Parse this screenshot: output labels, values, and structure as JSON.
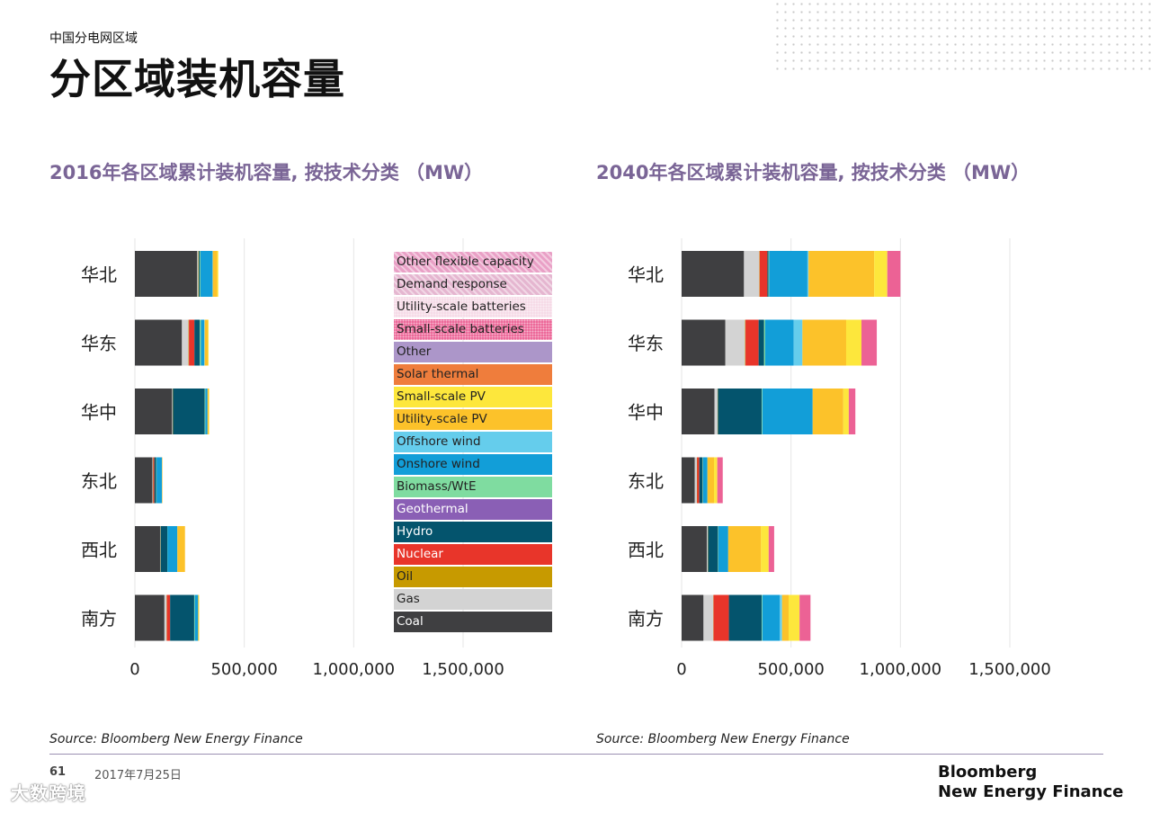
{
  "header": {
    "kicker": "中国分电网区域",
    "title": "分区域装机容量"
  },
  "colors": {
    "Coal": "#3f3f41",
    "Gas": "#d3d3d3",
    "Oil": "#c79a00",
    "Nuclear": "#e8352a",
    "Hydro": "#04546d",
    "Geothermal": "#8a5fb5",
    "Biomass/WtE": "#7fdca0",
    "Onshore wind": "#129ed8",
    "Offshore wind": "#65cdec",
    "Utility-scale PV": "#fcc22a",
    "Small-scale PV": "#fde73c",
    "Solar thermal": "#ef7d3c",
    "Other": "#ac96c9",
    "Small-scale batteries": "#ec6295",
    "Utility-scale batteries": "#f6d9e6",
    "Demand response": "#e5b6d0",
    "Other flexible capacity": "#e9a0c6"
  },
  "legend": {
    "items": [
      "Other flexible capacity",
      "Demand response",
      "Utility-scale batteries",
      "Small-scale batteries",
      "Other",
      "Solar thermal",
      "Small-scale PV",
      "Utility-scale PV",
      "Offshore wind",
      "Onshore wind",
      "Biomass/WtE",
      "Geothermal",
      "Hydro",
      "Nuclear",
      "Oil",
      "Gas",
      "Coal"
    ]
  },
  "chart_data": [
    {
      "type": "bar",
      "orientation": "horizontal",
      "stacked": true,
      "title": "2016年各区域累计装机容量, 按技术分类 （MW）",
      "categories": [
        "华北",
        "华东",
        "华中",
        "东北",
        "西北",
        "南方"
      ],
      "xlim": [
        0,
        1500000
      ],
      "x_ticks": [
        "0",
        "500,000",
        "1,000,000",
        "1,500,000"
      ],
      "grid": "vertical",
      "series": [
        {
          "name": "Coal",
          "values": [
            285000,
            215000,
            170000,
            80000,
            115000,
            135000
          ]
        },
        {
          "name": "Gas",
          "values": [
            5000,
            30000,
            3000,
            3000,
            2000,
            10000
          ]
        },
        {
          "name": "Oil",
          "values": [
            2000,
            2000,
            1000,
            1000,
            1000,
            1000
          ]
        },
        {
          "name": "Nuclear",
          "values": [
            0,
            25000,
            0,
            5000,
            0,
            15000
          ]
        },
        {
          "name": "Hydro",
          "values": [
            5000,
            25000,
            145000,
            8000,
            30000,
            110000
          ]
        },
        {
          "name": "Geothermal",
          "values": [
            0,
            0,
            0,
            0,
            0,
            0
          ]
        },
        {
          "name": "Biomass/WtE",
          "values": [
            3000,
            5000,
            3000,
            2000,
            1000,
            3000
          ]
        },
        {
          "name": "Onshore wind",
          "values": [
            55000,
            15000,
            10000,
            25000,
            45000,
            15000
          ]
        },
        {
          "name": "Offshore wind",
          "values": [
            1000,
            2000,
            0,
            0,
            0,
            0
          ]
        },
        {
          "name": "Utility-scale PV",
          "values": [
            20000,
            15000,
            6000,
            1000,
            35000,
            3000
          ]
        },
        {
          "name": "Small-scale PV",
          "values": [
            5000,
            3000,
            1000,
            0,
            0,
            1000
          ]
        },
        {
          "name": "Solar thermal",
          "values": [
            0,
            0,
            0,
            0,
            0,
            0
          ]
        },
        {
          "name": "Other",
          "values": [
            0,
            0,
            0,
            0,
            0,
            0
          ]
        },
        {
          "name": "Small-scale batteries",
          "values": [
            0,
            0,
            0,
            0,
            0,
            0
          ]
        },
        {
          "name": "Utility-scale batteries",
          "values": [
            0,
            0,
            0,
            0,
            0,
            0
          ]
        },
        {
          "name": "Demand response",
          "values": [
            0,
            0,
            0,
            0,
            0,
            0
          ]
        },
        {
          "name": "Other flexible capacity",
          "values": [
            0,
            0,
            0,
            0,
            0,
            0
          ]
        }
      ]
    },
    {
      "type": "bar",
      "orientation": "horizontal",
      "stacked": true,
      "title": "2040年各区域累计装机容量, 按技术分类 （MW）",
      "categories": [
        "华北",
        "华东",
        "华中",
        "东北",
        "西北",
        "南方"
      ],
      "xlim": [
        0,
        1500000
      ],
      "x_ticks": [
        "0",
        "500,000",
        "1,000,000",
        "1,500,000"
      ],
      "grid": "vertical",
      "series": [
        {
          "name": "Coal",
          "values": [
            285000,
            200000,
            150000,
            60000,
            115000,
            100000
          ]
        },
        {
          "name": "Gas",
          "values": [
            70000,
            90000,
            15000,
            10000,
            5000,
            45000
          ]
        },
        {
          "name": "Oil",
          "values": [
            2000,
            2000,
            1000,
            1000,
            1000,
            1000
          ]
        },
        {
          "name": "Nuclear",
          "values": [
            35000,
            60000,
            0,
            10000,
            0,
            70000
          ]
        },
        {
          "name": "Hydro",
          "values": [
            5000,
            25000,
            200000,
            15000,
            45000,
            150000
          ]
        },
        {
          "name": "Geothermal",
          "values": [
            0,
            0,
            0,
            0,
            0,
            0
          ]
        },
        {
          "name": "Biomass/WtE",
          "values": [
            3000,
            5000,
            3000,
            2000,
            2000,
            3000
          ]
        },
        {
          "name": "Onshore wind",
          "values": [
            175000,
            130000,
            230000,
            20000,
            45000,
            80000
          ]
        },
        {
          "name": "Offshore wind",
          "values": [
            5000,
            40000,
            0,
            0,
            0,
            10000
          ]
        },
        {
          "name": "Utility-scale PV",
          "values": [
            300000,
            200000,
            140000,
            30000,
            150000,
            30000
          ]
        },
        {
          "name": "Small-scale PV",
          "values": [
            60000,
            70000,
            25000,
            15000,
            35000,
            50000
          ]
        },
        {
          "name": "Solar thermal",
          "values": [
            0,
            0,
            0,
            0,
            0,
            0
          ]
        },
        {
          "name": "Other",
          "values": [
            0,
            0,
            0,
            0,
            0,
            0
          ]
        },
        {
          "name": "Small-scale batteries",
          "values": [
            60000,
            70000,
            30000,
            25000,
            25000,
            50000
          ]
        },
        {
          "name": "Utility-scale batteries",
          "values": [
            0,
            0,
            0,
            0,
            0,
            0
          ]
        },
        {
          "name": "Demand response",
          "values": [
            0,
            0,
            0,
            0,
            0,
            0
          ]
        },
        {
          "name": "Other flexible capacity",
          "values": [
            0,
            0,
            0,
            0,
            0,
            0
          ]
        }
      ]
    }
  ],
  "sources": {
    "left": "Source: Bloomberg New Energy Finance",
    "right": "Source: Bloomberg New Energy Finance"
  },
  "footer": {
    "page_number": "61",
    "date": "2017年7月25日",
    "brand_line1": "Bloomberg",
    "brand_line2": "New Energy Finance",
    "watermark": "大数跨境"
  }
}
